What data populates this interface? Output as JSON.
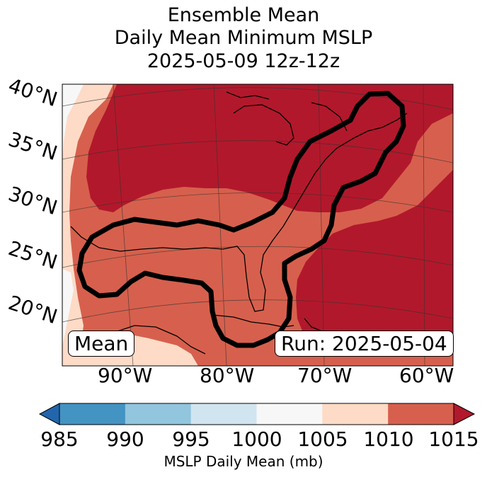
{
  "title": {
    "line1": "Ensemble Mean",
    "line2": "Daily Mean Minimum MSLP",
    "line3": "2025-05-09 12z-12z"
  },
  "map": {
    "lat_labels": [
      "40°N",
      "35°N",
      "30°N",
      "25°N",
      "20°N"
    ],
    "lon_labels": [
      "90°W",
      "80°W",
      "70°W",
      "60°W"
    ],
    "mean_box": "Mean",
    "run_box": "Run: 2025-05-04",
    "region_colors": {
      "dark_red": "#b2182b",
      "red": "#d6604d",
      "light_salmon": "#fddbc7",
      "near_white": "#f7f7f7",
      "contour": "#000000"
    }
  },
  "colorbar": {
    "label": "MSLP Daily Mean (mb)",
    "ticks": [
      "985",
      "990",
      "995",
      "1000",
      "1005",
      "1010",
      "1015"
    ],
    "under_color": "#2166ac",
    "over_color": "#b2182b",
    "segments": [
      "#4393c3",
      "#92c5de",
      "#d1e5f0",
      "#f7f7f7",
      "#fddbc7",
      "#d6604d"
    ]
  }
}
